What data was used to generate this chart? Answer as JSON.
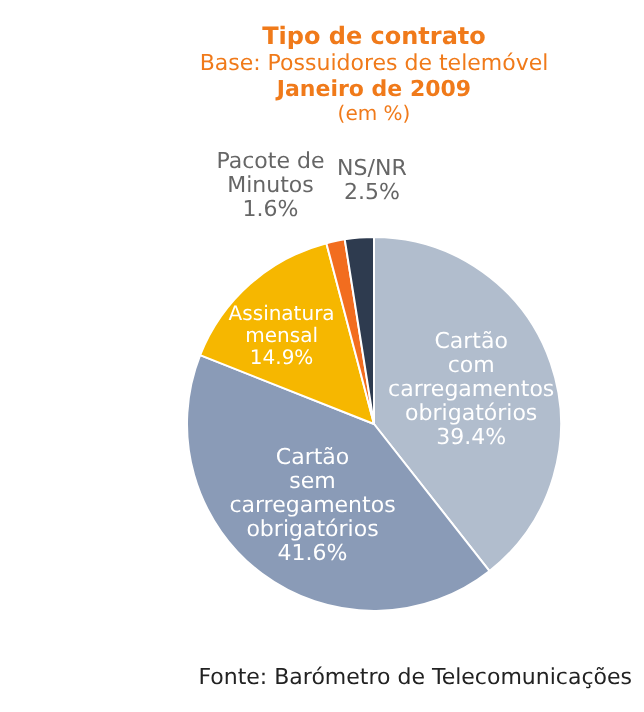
{
  "chart_data": {
    "type": "pie",
    "title": "Tipo de contrato",
    "subtitle": "Base: Possuidores de telemóvel\nJaneiro de 2009\n(em %)",
    "categories": [
      "Cartão com carregamentos obrigatórios",
      "Cartão sem carregamentos obrigatórios",
      "Assinatura mensal",
      "Pacote de Minutos",
      "NS/NR"
    ],
    "values": [
      39.4,
      41.6,
      14.9,
      1.6,
      2.5
    ],
    "colors": [
      "#b1bdcd",
      "#8a9bb7",
      "#f6b700",
      "#f26d1f",
      "#2e3b4f"
    ],
    "value_labels": [
      "39.4%",
      "41.6%",
      "14.9%",
      "1.6%",
      "2.5%"
    ],
    "legend": false,
    "annotations": [
      "Fonte: Barómetro de Telecomunicações"
    ]
  }
}
